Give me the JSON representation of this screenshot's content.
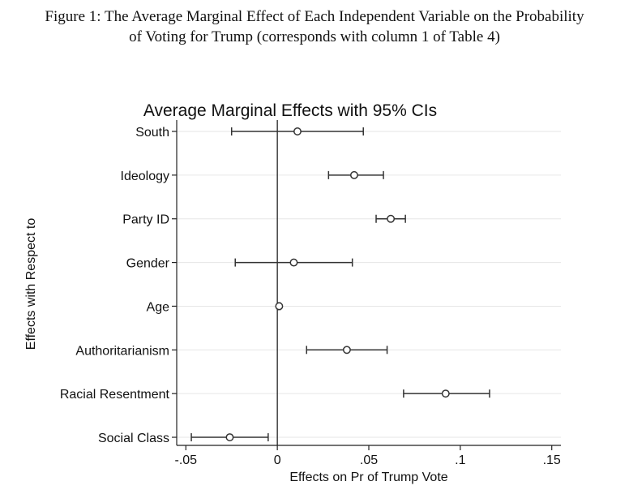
{
  "figure": {
    "caption_line1": "Figure 1: The Average Marginal Effect of Each Independent Variable on the Probability",
    "caption_line2": "of Voting for Trump (corresponds with column 1 of Table 4)"
  },
  "chart_data": {
    "type": "scatter",
    "subtype": "coefficient-plot-with-error-bars",
    "title": "Average Marginal Effects with 95% CIs",
    "xlabel": "Effects on Pr of Trump Vote",
    "ylabel": "Effects with Respect to",
    "xlim": [
      -0.055,
      0.155
    ],
    "xticks": [
      -0.05,
      0,
      0.05,
      0.1,
      0.15
    ],
    "xtick_labels": [
      "-.05",
      "0",
      ".05",
      ".1",
      ".15"
    ],
    "reference_line": 0,
    "grid": "horizontal",
    "categories": [
      "South",
      "Ideology",
      "Party ID",
      "Gender",
      "Age",
      "Authoritarianism",
      "Racial Resentment",
      "Social Class"
    ],
    "estimates": [
      0.011,
      0.042,
      0.062,
      0.009,
      0.001,
      0.038,
      0.092,
      -0.026
    ],
    "ci_low": [
      -0.025,
      0.028,
      0.054,
      -0.023,
      0.0005,
      0.016,
      0.069,
      -0.047
    ],
    "ci_high": [
      0.047,
      0.058,
      0.07,
      0.041,
      0.0015,
      0.06,
      0.116,
      -0.005
    ]
  }
}
